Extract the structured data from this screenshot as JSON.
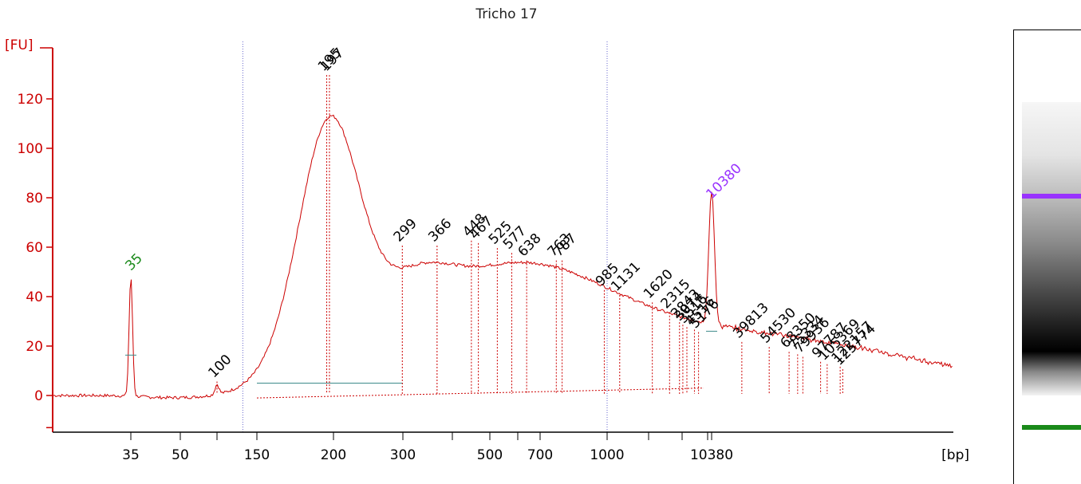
{
  "title": "Tricho 17",
  "chart_data": {
    "type": "line",
    "title": "Tricho 17",
    "ylabel": "[FU]",
    "xlabel": "[bp]",
    "ylim": [
      -13,
      140
    ],
    "yticks": [
      0,
      20,
      40,
      60,
      80,
      100,
      120
    ],
    "xticks": [
      {
        "label": "35",
        "bp": 35
      },
      {
        "label": "50",
        "bp": 50
      },
      {
        "label": "",
        "bp": 100
      },
      {
        "label": "150",
        "bp": 150
      },
      {
        "label": "200",
        "bp": 200
      },
      {
        "label": "300",
        "bp": 300
      },
      {
        "label": "",
        "bp": 400
      },
      {
        "label": "500",
        "bp": 500
      },
      {
        "label": "",
        "bp": 600
      },
      {
        "label": "700",
        "bp": 700
      },
      {
        "label": "1000",
        "bp": 1000
      },
      {
        "label": "",
        "bp": 1500
      },
      {
        "label": "",
        "bp": 3000
      },
      {
        "label": "",
        "bp": 7000
      },
      {
        "label": "10380",
        "bp": 10380
      }
    ],
    "markers": [
      {
        "label": "35",
        "bp": 35,
        "fu": 49,
        "color": "#1a8a1a"
      },
      {
        "label": "10380",
        "bp": 10380,
        "fu": 78,
        "color": "#9933ff"
      }
    ],
    "peaks": [
      {
        "label": "100",
        "bp": 100,
        "fu": 5
      },
      {
        "label": "195",
        "bp": 195,
        "fu": 129
      },
      {
        "label": "197",
        "bp": 197,
        "fu": 129
      },
      {
        "label": "299",
        "bp": 299,
        "fu": 60
      },
      {
        "label": "366",
        "bp": 366,
        "fu": 60
      },
      {
        "label": "448",
        "bp": 448,
        "fu": 62
      },
      {
        "label": "467",
        "bp": 467,
        "fu": 61
      },
      {
        "label": "525",
        "bp": 525,
        "fu": 59
      },
      {
        "label": "577",
        "bp": 577,
        "fu": 57
      },
      {
        "label": "638",
        "bp": 638,
        "fu": 54
      },
      {
        "label": "763",
        "bp": 763,
        "fu": 54
      },
      {
        "label": "787",
        "bp": 787,
        "fu": 54
      },
      {
        "label": "985",
        "bp": 985,
        "fu": 42
      },
      {
        "label": "1131",
        "bp": 1131,
        "fu": 40
      },
      {
        "label": "1620",
        "bp": 1620,
        "fu": 37
      },
      {
        "label": "2315",
        "bp": 2315,
        "fu": 33
      },
      {
        "label": "2843",
        "bp": 2843,
        "fu": 29
      },
      {
        "label": "3074",
        "bp": 3074,
        "fu": 28
      },
      {
        "label": "3516",
        "bp": 3516,
        "fu": 27
      },
      {
        "label": "4516",
        "bp": 4516,
        "fu": 26
      },
      {
        "label": "5176",
        "bp": 5176,
        "fu": 25
      },
      {
        "label": "39813",
        "bp": 39813,
        "fu": 21
      },
      {
        "label": "54530",
        "bp": 54530,
        "fu": 19
      },
      {
        "label": "68350",
        "bp": 68350,
        "fu": 17
      },
      {
        "label": "75334",
        "bp": 75334,
        "fu": 16
      },
      {
        "label": "79936",
        "bp": 79936,
        "fu": 15
      },
      {
        "label": "97787",
        "bp": 97787,
        "fu": 13
      },
      {
        "label": "105369",
        "bp": 105369,
        "fu": 12
      },
      {
        "label": "122157",
        "bp": 122157,
        "fu": 11
      },
      {
        "label": "125774",
        "bp": 125774,
        "fu": 10
      }
    ],
    "ladder_lines_bp": [
      130,
      1000
    ],
    "grid": false,
    "legend": "none"
  },
  "gel": {
    "upper_marker_color": "#9933ff",
    "lower_marker_color": "#1a8a1a"
  }
}
